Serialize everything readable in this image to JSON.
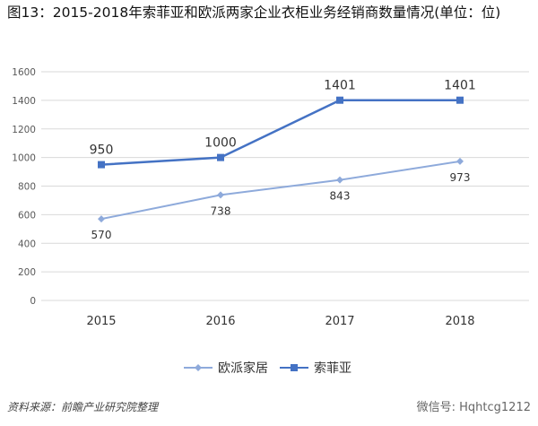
{
  "title": "图13：2015-2018年索菲亚和欧派两家企业衣柜业务经销商数量情况(单位：位)",
  "source": "资料来源：前瞻产业研究院整理",
  "watermark": "微信号: Hqhtcg1212",
  "colors": {
    "sofia": "#4472c4",
    "oppein": "#8eaadb",
    "grid": "#d9d9d9",
    "axis_text": "#595959"
  },
  "chart_data": {
    "type": "line",
    "title": "图13：2015-2018年索菲亚和欧派两家企业衣柜业务经销商数量情况(单位：位)",
    "xlabel": "",
    "ylabel": "",
    "categories": [
      "2015",
      "2016",
      "2017",
      "2018"
    ],
    "ylim": [
      0,
      1600
    ],
    "yticks": [
      0,
      200,
      400,
      600,
      800,
      1000,
      1200,
      1400,
      1600
    ],
    "grid": true,
    "legend_position": "bottom",
    "series": [
      {
        "name": "欧派家居",
        "values": [
          570,
          738,
          843,
          973
        ],
        "labels": [
          "570",
          "738",
          "843",
          "973"
        ],
        "marker": "diamond"
      },
      {
        "name": "索菲亚",
        "values": [
          950,
          1000,
          1401,
          1401
        ],
        "labels": [
          "950",
          "1000",
          "1401",
          "1401"
        ],
        "marker": "square"
      }
    ]
  }
}
